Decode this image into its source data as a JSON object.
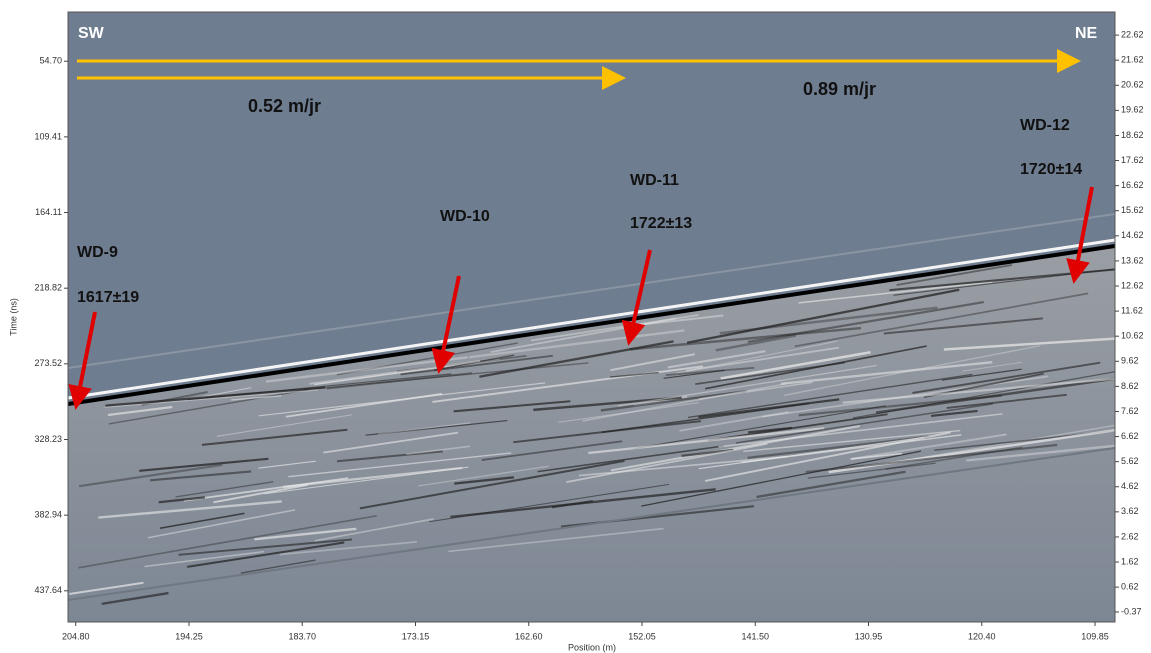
{
  "chart_data": {
    "type": "radargram",
    "x_label": "Position (m)",
    "y_label": "Time (ns)",
    "xlim": [
      205.52,
      107.99
    ],
    "xticks": [
      {
        "value": 204.8,
        "label": "204.80"
      },
      194.25,
      {
        "value": 183.7,
        "label": "183.70"
      },
      173.15,
      {
        "value": 162.6,
        "label": "162.60"
      },
      152.05,
      {
        "value": 141.5,
        "label": "141.50"
      },
      130.95,
      {
        "value": 120.4,
        "label": "120.40"
      },
      109.85
    ],
    "ylim": [
      19.1,
      460.2
    ],
    "yticks": [
      {
        "value": 54.7,
        "label": "54.70"
      },
      109.41,
      164.11,
      218.82,
      273.52,
      328.23,
      382.94,
      437.64
    ],
    "y2lim": [
      23.54,
      -0.77
    ],
    "y2ticks": [
      22.62,
      21.62,
      20.62,
      19.62,
      18.62,
      17.62,
      16.62,
      15.62,
      14.62,
      13.62,
      12.62,
      11.62,
      10.62,
      9.62,
      8.62,
      7.62,
      6.62,
      5.62,
      4.62,
      3.62,
      2.62,
      1.62,
      0.62,
      -0.37
    ],
    "annotations": [
      "SW",
      "NE",
      "0.52 m/jr",
      "0.89 m/jr",
      "WD-9",
      "1617±19",
      "WD-10",
      "WD-11",
      "1722±13",
      "WD-12",
      "1720±14"
    ]
  }
}
